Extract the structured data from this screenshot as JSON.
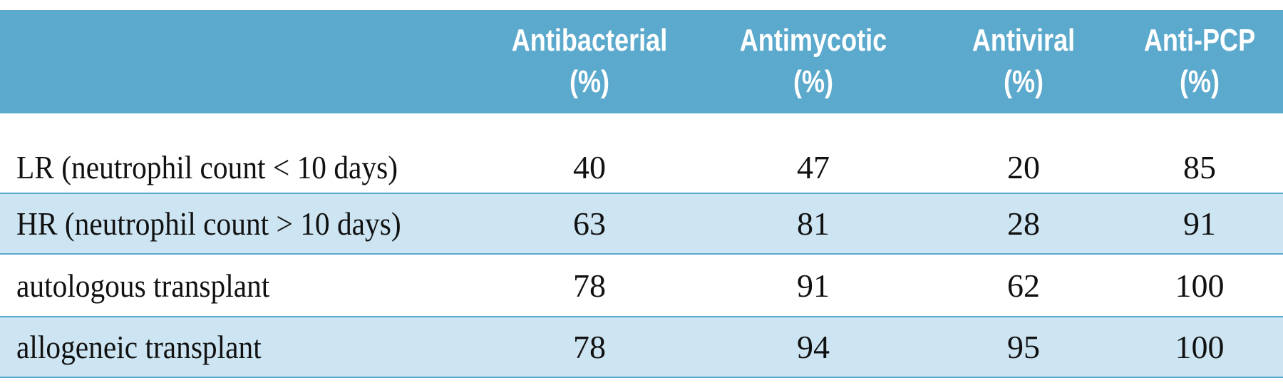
{
  "table": {
    "columns": [
      {
        "name": "Antibacterial",
        "unit": "(%)"
      },
      {
        "name": "Antimycotic",
        "unit": "(%)"
      },
      {
        "name": "Antiviral",
        "unit": "(%)"
      },
      {
        "name": "Anti-PCP",
        "unit": "(%)"
      }
    ],
    "rows": [
      {
        "label": "LR (neutrophil count < 10 days)",
        "values": [
          40,
          47,
          20,
          85
        ]
      },
      {
        "label": "HR (neutrophil count > 10 days)",
        "values": [
          63,
          81,
          28,
          91
        ]
      },
      {
        "label": "autologous transplant",
        "values": [
          78,
          91,
          62,
          100
        ]
      },
      {
        "label": "allogeneic transplant",
        "values": [
          78,
          94,
          95,
          100
        ]
      }
    ]
  }
}
